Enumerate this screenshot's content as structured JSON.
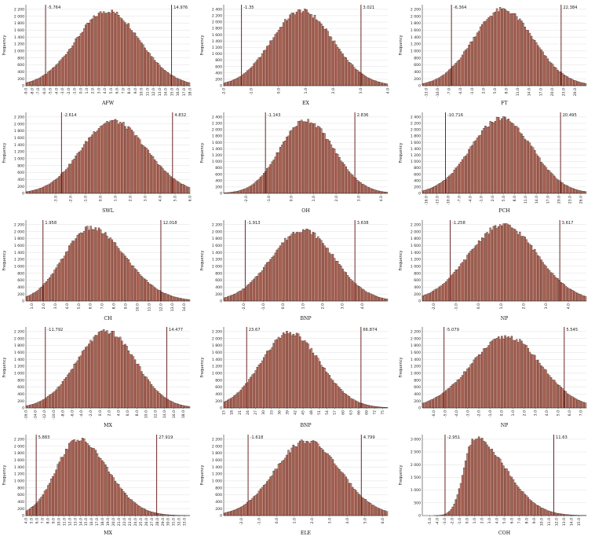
{
  "chart_data": [
    {
      "type": "bar",
      "title": "AFW",
      "ylabel": "Frequency",
      "xlim": [
        -9.0,
        18.0
      ],
      "ylim": [
        0,
        2200
      ],
      "yticks": [
        0,
        200,
        400,
        600,
        800,
        1000,
        1200,
        1400,
        1600,
        1800,
        2000,
        2200
      ],
      "x_tick_start": -9.0,
      "x_tick_step": 1.0,
      "x_tick_count": 28,
      "x_tick_decimals": 1,
      "mode": 4.5,
      "peak": 2150,
      "sd_left": 5.3,
      "sd_right": 5.3,
      "cut_left": -5.764,
      "cut_right": 14.976,
      "cut_left_label": "-5.764",
      "cut_right_label": "14.976"
    },
    {
      "type": "bar",
      "title": "EX",
      "ylabel": "Frequency",
      "xlim": [
        -2.0,
        4.0
      ],
      "ylim": [
        0,
        2400
      ],
      "yticks": [
        0,
        200,
        400,
        600,
        800,
        1000,
        1200,
        1400,
        1600,
        1800,
        2000,
        2200,
        2400
      ],
      "x_tick_start": -2.0,
      "x_tick_step": 1.0,
      "x_tick_count": 7,
      "x_tick_decimals": 1,
      "mode": 0.85,
      "peak": 2350,
      "sd_left": 1.1,
      "sd_right": 1.15,
      "cut_left": -1.35,
      "cut_right": 3.021,
      "cut_left_label": "-1.35",
      "cut_right_label": "3.021"
    },
    {
      "type": "bar",
      "title": "FT",
      "ylabel": "Frequency",
      "xlim": [
        -14.0,
        29.0
      ],
      "ylim": [
        0,
        2200
      ],
      "yticks": [
        0,
        200,
        400,
        600,
        800,
        1000,
        1200,
        1400,
        1600,
        1800,
        2000,
        2200
      ],
      "x_tick_start": -13.0,
      "x_tick_step": 3.0,
      "x_tick_count": 14,
      "x_tick_decimals": 1,
      "mode": 7.0,
      "peak": 2190,
      "sd_left": 7.8,
      "sd_right": 8.2,
      "cut_left": -6.364,
      "cut_right": 22.384,
      "cut_left_label": "-6.364",
      "cut_right_label": "22.384"
    },
    {
      "type": "bar",
      "title": "SWL",
      "ylabel": "Frequency",
      "xlim": [
        -5.0,
        6.0
      ],
      "ylim": [
        0,
        2200
      ],
      "yticks": [
        0,
        200,
        400,
        600,
        800,
        1000,
        1200,
        1400,
        1600,
        1800,
        2000,
        2200
      ],
      "x_tick_start": -3.0,
      "x_tick_step": 1.0,
      "x_tick_count": 10,
      "x_tick_decimals": 1,
      "mode": 0.8,
      "peak": 2090,
      "sd_left": 2.1,
      "sd_right": 2.3,
      "cut_left": -2.614,
      "cut_right": 4.832,
      "cut_left_label": "-2.614",
      "cut_right_label": "4.832"
    },
    {
      "type": "bar",
      "title": "OH",
      "ylabel": "Frequency",
      "xlim": [
        -3.0,
        4.3
      ],
      "ylim": [
        0,
        2400
      ],
      "yticks": [
        0,
        200,
        400,
        600,
        800,
        1000,
        1200,
        1400,
        1600,
        1800,
        2000,
        2200,
        2400
      ],
      "x_tick_start": -2.0,
      "x_tick_step": 1.0,
      "x_tick_count": 7,
      "x_tick_decimals": 1,
      "mode": 0.65,
      "peak": 2300,
      "sd_left": 1.15,
      "sd_right": 1.25,
      "cut_left": -1.143,
      "cut_right": 2.836,
      "cut_left_label": "-1.143",
      "cut_right_label": "2.836"
    },
    {
      "type": "bar",
      "title": "PCH",
      "ylabel": "Frequency",
      "xlim": [
        -17.0,
        27.5
      ],
      "ylim": [
        0,
        2400
      ],
      "yticks": [
        0,
        200,
        400,
        600,
        800,
        1000,
        1200,
        1400,
        1600,
        1800,
        2000,
        2200,
        2400
      ],
      "x_tick_start": -16.0,
      "x_tick_step": 3.0,
      "x_tick_count": 15,
      "x_tick_decimals": 1,
      "mode": 4.5,
      "peak": 2360,
      "sd_left": 8.3,
      "sd_right": 8.3,
      "cut_left": -10.716,
      "cut_right": 20.495,
      "cut_left_label": "-10.716",
      "cut_right_label": "20.495"
    },
    {
      "type": "bar",
      "title": "CH",
      "ylabel": "Frequency",
      "xlim": [
        0.5,
        14.5
      ],
      "ylim": [
        0,
        2200
      ],
      "yticks": [
        0,
        200,
        400,
        600,
        800,
        1000,
        1200,
        1400,
        1600,
        1800,
        2000,
        2200
      ],
      "x_tick_start": 1.0,
      "x_tick_step": 1.0,
      "x_tick_count": 14,
      "x_tick_decimals": 1,
      "mode": 6.0,
      "peak": 2100,
      "sd_left": 2.3,
      "sd_right": 3.0,
      "cut_left": 1.958,
      "cut_right": 12.018,
      "cut_left_label": "1.958",
      "cut_right_label": "12.018"
    },
    {
      "type": "bar",
      "title": "BNP",
      "ylabel": "Frequency",
      "xlim": [
        -3.0,
        5.3
      ],
      "ylim": [
        0,
        2200
      ],
      "yticks": [
        0,
        200,
        400,
        600,
        800,
        1000,
        1200,
        1400,
        1600,
        1800,
        2000,
        2200
      ],
      "x_tick_start": -2.0,
      "x_tick_step": 1.0,
      "x_tick_count": 7,
      "x_tick_decimals": 1,
      "mode": 1.0,
      "peak": 2050,
      "sd_left": 1.6,
      "sd_right": 1.6,
      "cut_left": -1.913,
      "cut_right": 3.638,
      "cut_left_label": "-1.913",
      "cut_right_label": "3.638"
    },
    {
      "type": "bar",
      "title": "NP",
      "ylabel": "Frequency",
      "xlim": [
        -2.5,
        4.8
      ],
      "ylim": [
        0,
        2200
      ],
      "yticks": [
        0,
        200,
        400,
        600,
        800,
        1000,
        1200,
        1400,
        1600,
        1800,
        2000,
        2200
      ],
      "x_tick_start": -2.0,
      "x_tick_step": 1.0,
      "x_tick_count": 7,
      "x_tick_decimals": 1,
      "mode": 1.1,
      "peak": 2180,
      "sd_left": 1.55,
      "sd_right": 1.55,
      "cut_left": -1.258,
      "cut_right": 3.617,
      "cut_left_label": "-1.258",
      "cut_right_label": "3.617"
    },
    {
      "type": "bar",
      "title": "MX",
      "ylabel": "Frequency",
      "xlim": [
        -16.0,
        19.5
      ],
      "ylim": [
        0,
        2200
      ],
      "yticks": [
        0,
        200,
        400,
        600,
        800,
        1000,
        1200,
        1400,
        1600,
        1800,
        2000,
        2200
      ],
      "x_tick_start": -16.0,
      "x_tick_step": 2.0,
      "x_tick_count": 18,
      "x_tick_decimals": 1,
      "mode": 1.5,
      "peak": 2200,
      "sd_left": 6.5,
      "sd_right": 6.3,
      "cut_left": -11.792,
      "cut_right": 14.477,
      "cut_left_label": "-11.792",
      "cut_right_label": "14.477"
    },
    {
      "type": "bar",
      "title": "BNP",
      "ylabel": "Frequency",
      "xlim": [
        15.0,
        77.0
      ],
      "ylim": [
        0,
        2200
      ],
      "yticks": [
        0,
        200,
        400,
        600,
        800,
        1000,
        1200,
        1400,
        1600,
        1800,
        2000,
        2200
      ],
      "x_tick_start": 15.0,
      "x_tick_step": 3.0,
      "x_tick_count": 21,
      "x_tick_decimals": 0,
      "mode": 40.0,
      "peak": 2150,
      "sd_left": 11.0,
      "sd_right": 11.5,
      "cut_left": 23.67,
      "cut_right": 66.874,
      "cut_left_label": "23.67",
      "cut_right_label": "66.874"
    },
    {
      "type": "bar",
      "title": "NP",
      "ylabel": "Frequency",
      "xlim": [
        -7.0,
        7.5
      ],
      "ylim": [
        0,
        2200
      ],
      "yticks": [
        0,
        200,
        400,
        600,
        800,
        1000,
        1200,
        1400,
        1600,
        1800,
        2000,
        2200
      ],
      "x_tick_start": -6.0,
      "x_tick_step": 1.0,
      "x_tick_count": 14,
      "x_tick_decimals": 1,
      "mode": 0.5,
      "peak": 2050,
      "sd_left": 3.2,
      "sd_right": 3.0,
      "cut_left": -5.079,
      "cut_right": 5.545,
      "cut_left_label": "-5.079",
      "cut_right_label": "5.545"
    },
    {
      "type": "bar",
      "title": "MX",
      "ylabel": "Frequency",
      "xlim": [
        4.0,
        34.0
      ],
      "ylim": [
        0,
        2200
      ],
      "yticks": [
        0,
        200,
        400,
        600,
        800,
        1000,
        1200,
        1400,
        1600,
        1800,
        2000,
        2200
      ],
      "x_tick_start": 4.0,
      "x_tick_step": 1.0,
      "x_tick_count": 30,
      "x_tick_decimals": 1,
      "mode": 13.5,
      "peak": 2190,
      "sd_left": 4.0,
      "sd_right": 5.5,
      "cut_left": 5.883,
      "cut_right": 27.919,
      "cut_left_label": "5.883",
      "cut_right_label": "27.919"
    },
    {
      "type": "bar",
      "title": "ELE",
      "ylabel": "Frequency",
      "xlim": [
        -3.0,
        6.3
      ],
      "ylim": [
        0,
        2200
      ],
      "yticks": [
        0,
        200,
        400,
        600,
        800,
        1000,
        1200,
        1400,
        1600,
        1800,
        2000,
        2200
      ],
      "x_tick_start": -2.0,
      "x_tick_step": 1.0,
      "x_tick_count": 9,
      "x_tick_decimals": 1,
      "mode": 1.7,
      "peak": 2150,
      "sd_left": 1.8,
      "sd_right": 1.9,
      "cut_left": -1.618,
      "cut_right": 4.799,
      "cut_left_label": "-1.618",
      "cut_right_label": "4.799"
    },
    {
      "type": "bar",
      "title": "COH",
      "ylabel": "Frequency",
      "xlim": [
        -6.0,
        16.0
      ],
      "ylim": [
        0,
        3000
      ],
      "yticks": [
        0,
        500,
        1000,
        1500,
        2000,
        2500,
        3000
      ],
      "x_tick_start": -5.0,
      "x_tick_step": 1.0,
      "x_tick_count": 21,
      "x_tick_decimals": 1,
      "mode": 1.0,
      "peak": 3050,
      "sd_left": 1.4,
      "sd_right": 4.2,
      "cut_left": -2.951,
      "cut_right": 11.63,
      "cut_left_label": "-2.951",
      "cut_right_label": "11.63"
    }
  ]
}
